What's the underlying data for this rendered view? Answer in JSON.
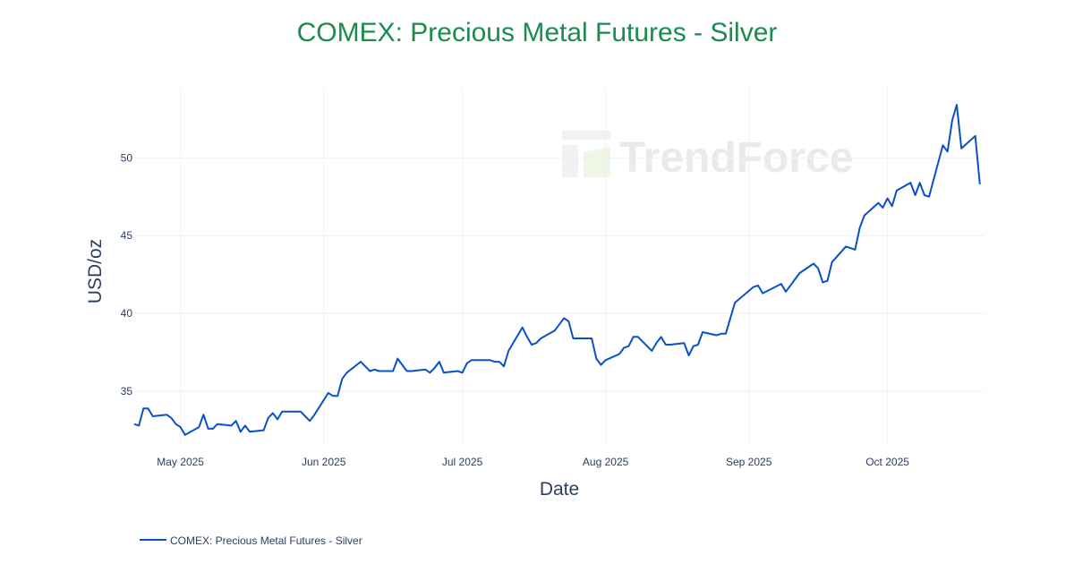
{
  "chart_data": {
    "type": "line",
    "title": "COMEX: Precious Metal Futures - Silver",
    "xlabel": "Date",
    "ylabel": "USD/oz",
    "title_color": "#1a8c4e",
    "line_color": "#0a50c8",
    "grid": true,
    "legend_position": "bottom-left",
    "watermark": "TrendForce",
    "xlim": [
      "2025-04-21",
      "2025-10-22"
    ],
    "ylim": [
      31.5,
      54.5
    ],
    "y_ticks": [
      35,
      40,
      45,
      50
    ],
    "x_ticks": [
      {
        "date": "2025-05-01",
        "label": "May 2025"
      },
      {
        "date": "2025-06-01",
        "label": "Jun 2025"
      },
      {
        "date": "2025-07-01",
        "label": "Jul 2025"
      },
      {
        "date": "2025-08-01",
        "label": "Aug 2025"
      },
      {
        "date": "2025-09-01",
        "label": "Sep 2025"
      },
      {
        "date": "2025-10-01",
        "label": "Oct 2025"
      }
    ],
    "series": [
      {
        "name": "COMEX: Precious Metal Futures - Silver",
        "points": [
          [
            "2025-04-21",
            32.9
          ],
          [
            "2025-04-22",
            32.8
          ],
          [
            "2025-04-23",
            33.9
          ],
          [
            "2025-04-24",
            33.9
          ],
          [
            "2025-04-25",
            33.4
          ],
          [
            "2025-04-28",
            33.5
          ],
          [
            "2025-04-29",
            33.3
          ],
          [
            "2025-04-30",
            32.9
          ],
          [
            "2025-05-01",
            32.7
          ],
          [
            "2025-05-02",
            32.2
          ],
          [
            "2025-05-05",
            32.7
          ],
          [
            "2025-05-06",
            33.5
          ],
          [
            "2025-05-07",
            32.6
          ],
          [
            "2025-05-08",
            32.6
          ],
          [
            "2025-05-09",
            32.9
          ],
          [
            "2025-05-12",
            32.8
          ],
          [
            "2025-05-13",
            33.1
          ],
          [
            "2025-05-14",
            32.4
          ],
          [
            "2025-05-15",
            32.8
          ],
          [
            "2025-05-16",
            32.4
          ],
          [
            "2025-05-19",
            32.5
          ],
          [
            "2025-05-20",
            33.3
          ],
          [
            "2025-05-21",
            33.6
          ],
          [
            "2025-05-22",
            33.2
          ],
          [
            "2025-05-23",
            33.7
          ],
          [
            "2025-05-27",
            33.7
          ],
          [
            "2025-05-28",
            33.4
          ],
          [
            "2025-05-29",
            33.1
          ],
          [
            "2025-05-30",
            33.5
          ],
          [
            "2025-06-02",
            34.9
          ],
          [
            "2025-06-03",
            34.7
          ],
          [
            "2025-06-04",
            34.7
          ],
          [
            "2025-06-05",
            35.8
          ],
          [
            "2025-06-06",
            36.2
          ],
          [
            "2025-06-09",
            36.9
          ],
          [
            "2025-06-10",
            36.6
          ],
          [
            "2025-06-11",
            36.3
          ],
          [
            "2025-06-12",
            36.4
          ],
          [
            "2025-06-13",
            36.3
          ],
          [
            "2025-06-16",
            36.3
          ],
          [
            "2025-06-17",
            37.1
          ],
          [
            "2025-06-18",
            36.7
          ],
          [
            "2025-06-19",
            36.3
          ],
          [
            "2025-06-20",
            36.3
          ],
          [
            "2025-06-23",
            36.4
          ],
          [
            "2025-06-24",
            36.2
          ],
          [
            "2025-06-25",
            36.5
          ],
          [
            "2025-06-26",
            36.9
          ],
          [
            "2025-06-27",
            36.2
          ],
          [
            "2025-06-30",
            36.3
          ],
          [
            "2025-07-01",
            36.2
          ],
          [
            "2025-07-02",
            36.8
          ],
          [
            "2025-07-03",
            37.0
          ],
          [
            "2025-07-07",
            37.0
          ],
          [
            "2025-07-08",
            36.9
          ],
          [
            "2025-07-09",
            36.9
          ],
          [
            "2025-07-10",
            36.6
          ],
          [
            "2025-07-11",
            37.6
          ],
          [
            "2025-07-14",
            39.1
          ],
          [
            "2025-07-15",
            38.5
          ],
          [
            "2025-07-16",
            38.0
          ],
          [
            "2025-07-17",
            38.1
          ],
          [
            "2025-07-18",
            38.4
          ],
          [
            "2025-07-21",
            38.9
          ],
          [
            "2025-07-22",
            39.3
          ],
          [
            "2025-07-23",
            39.7
          ],
          [
            "2025-07-24",
            39.5
          ],
          [
            "2025-07-25",
            38.4
          ],
          [
            "2025-07-28",
            38.4
          ],
          [
            "2025-07-29",
            38.4
          ],
          [
            "2025-07-30",
            37.1
          ],
          [
            "2025-07-31",
            36.7
          ],
          [
            "2025-08-01",
            37.0
          ],
          [
            "2025-08-04",
            37.4
          ],
          [
            "2025-08-05",
            37.8
          ],
          [
            "2025-08-06",
            37.9
          ],
          [
            "2025-08-07",
            38.5
          ],
          [
            "2025-08-08",
            38.5
          ],
          [
            "2025-08-11",
            37.6
          ],
          [
            "2025-08-12",
            38.1
          ],
          [
            "2025-08-13",
            38.5
          ],
          [
            "2025-08-14",
            38.0
          ],
          [
            "2025-08-15",
            38.0
          ],
          [
            "2025-08-18",
            38.1
          ],
          [
            "2025-08-19",
            37.3
          ],
          [
            "2025-08-20",
            37.9
          ],
          [
            "2025-08-21",
            38.0
          ],
          [
            "2025-08-22",
            38.8
          ],
          [
            "2025-08-25",
            38.6
          ],
          [
            "2025-08-26",
            38.7
          ],
          [
            "2025-08-27",
            38.7
          ],
          [
            "2025-08-29",
            40.7
          ],
          [
            "2025-09-02",
            41.7
          ],
          [
            "2025-09-03",
            41.8
          ],
          [
            "2025-09-04",
            41.3
          ],
          [
            "2025-09-08",
            41.9
          ],
          [
            "2025-09-09",
            41.4
          ],
          [
            "2025-09-10",
            41.8
          ],
          [
            "2025-09-11",
            42.2
          ],
          [
            "2025-09-12",
            42.6
          ],
          [
            "2025-09-15",
            43.2
          ],
          [
            "2025-09-16",
            42.9
          ],
          [
            "2025-09-17",
            42.0
          ],
          [
            "2025-09-18",
            42.1
          ],
          [
            "2025-09-19",
            43.3
          ],
          [
            "2025-09-22",
            44.3
          ],
          [
            "2025-09-23",
            44.2
          ],
          [
            "2025-09-24",
            44.1
          ],
          [
            "2025-09-25",
            45.5
          ],
          [
            "2025-09-26",
            46.3
          ],
          [
            "2025-09-29",
            47.1
          ],
          [
            "2025-09-30",
            46.8
          ],
          [
            "2025-10-01",
            47.4
          ],
          [
            "2025-10-02",
            46.9
          ],
          [
            "2025-10-03",
            47.9
          ],
          [
            "2025-10-06",
            48.4
          ],
          [
            "2025-10-07",
            47.6
          ],
          [
            "2025-10-08",
            48.4
          ],
          [
            "2025-10-09",
            47.6
          ],
          [
            "2025-10-10",
            47.5
          ],
          [
            "2025-10-13",
            50.8
          ],
          [
            "2025-10-14",
            50.4
          ],
          [
            "2025-10-15",
            52.4
          ],
          [
            "2025-10-16",
            53.4
          ],
          [
            "2025-10-17",
            50.6
          ],
          [
            "2025-10-20",
            51.4
          ],
          [
            "2025-10-21",
            48.3
          ]
        ]
      }
    ]
  }
}
